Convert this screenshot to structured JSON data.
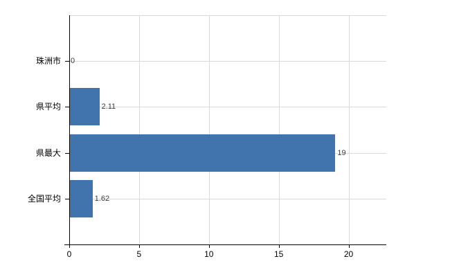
{
  "chart_data": {
    "type": "bar",
    "orientation": "horizontal",
    "title": "",
    "xlabel": "",
    "ylabel": "",
    "categories": [
      "珠洲市",
      "県平均",
      "県最大",
      "全国平均"
    ],
    "values": [
      0,
      2.11,
      19,
      1.62
    ],
    "value_labels": [
      "0",
      "2.11",
      "19",
      "1.62"
    ],
    "xticks": [
      0,
      5,
      10,
      15,
      20
    ],
    "xlim": [
      0,
      22.7
    ],
    "grid": true,
    "legend": false,
    "colors": {
      "bar": "#4173ad",
      "grid": "#d9d9d9",
      "axis": "#000000",
      "value_text": "#3a3a3a",
      "label_text": "#000000",
      "background": "#ffffff"
    }
  }
}
